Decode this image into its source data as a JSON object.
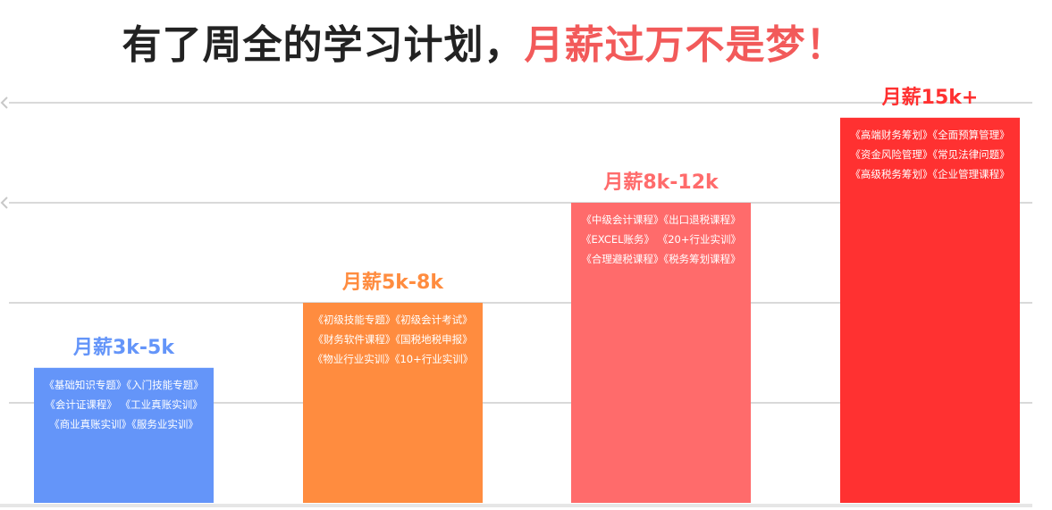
{
  "header": {
    "title_main": "有了周全的学习计划，",
    "title_highlight": "月薪过万不是梦！",
    "title_main_color": "#222222",
    "title_highlight_color": "#f25a5a"
  },
  "chart_data": {
    "type": "bar",
    "title": "有了周全的学习计划，月薪过万不是梦！",
    "categories": [
      "月薪3k-5k",
      "月薪5k-8k",
      "月薪8k-12k",
      "月薪15k+"
    ],
    "values": [
      1.35,
      2.0,
      3.0,
      3.85
    ],
    "ylim": [
      0,
      4.0
    ],
    "grid": true,
    "colors": [
      "#6495f9",
      "#ff8c3f",
      "#ff6b6b",
      "#ff3131"
    ],
    "label_colors": [
      "#6495f9",
      "#ff8c3f",
      "#ff6b6b",
      "#ff3131"
    ],
    "bar_texts": [
      [
        "《基础知识专题》《入门技能专题》",
        "《会计证课程》 《工业真账实训》",
        "《商业真账实训》《服务业实训》"
      ],
      [
        "《初级技能专题》《初级会计考试》",
        "《财务软件课程》《国税地税申报》",
        "《物业行业实训》《10+行业实训》"
      ],
      [
        "《中级会计课程》《出口退税课程》",
        "《EXCEL账务》 《20+行业实训》",
        "《合理避税课程》《税务筹划课程》"
      ],
      [
        "《高端财务筹划》《全面预算管理》",
        "《资金风险管理》《常见法律问题》",
        "《高级税务筹划》《企业管理课程》"
      ]
    ]
  }
}
